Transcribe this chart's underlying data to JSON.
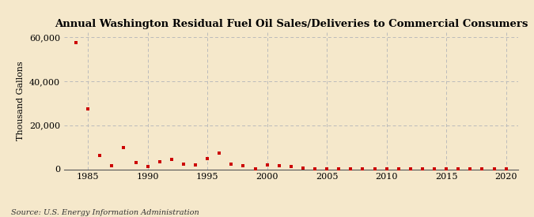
{
  "title": "Annual Washington Residual Fuel Oil Sales/Deliveries to Commercial Consumers",
  "ylabel": "Thousand Gallons",
  "source": "Source: U.S. Energy Information Administration",
  "background_color": "#f5e8cb",
  "plot_background_color": "#f5e8cb",
  "marker_color": "#cc0000",
  "marker": "s",
  "marker_size": 3.5,
  "xlim": [
    1983,
    2021
  ],
  "ylim": [
    0,
    62000
  ],
  "yticks": [
    0,
    20000,
    40000,
    60000
  ],
  "xticks": [
    1985,
    1990,
    1995,
    2000,
    2005,
    2010,
    2015,
    2020
  ],
  "years": [
    1984,
    1985,
    1986,
    1987,
    1988,
    1989,
    1990,
    1991,
    1992,
    1993,
    1994,
    1995,
    1996,
    1997,
    1998,
    1999,
    2000,
    2001,
    2002,
    2003,
    2004,
    2005,
    2006,
    2007,
    2008,
    2009,
    2010,
    2011,
    2012,
    2013,
    2014,
    2015,
    2016,
    2017,
    2018,
    2019,
    2020
  ],
  "values": [
    57500,
    27500,
    6200,
    1700,
    9800,
    3200,
    1200,
    3400,
    4500,
    2500,
    2000,
    4800,
    7200,
    2200,
    1700,
    50,
    1800,
    1600,
    1200,
    500,
    200,
    100,
    150,
    100,
    100,
    100,
    100,
    100,
    100,
    100,
    100,
    100,
    100,
    100,
    100,
    100,
    100
  ],
  "title_fontsize": 9.5,
  "ylabel_fontsize": 8,
  "tick_fontsize": 8,
  "source_fontsize": 7
}
